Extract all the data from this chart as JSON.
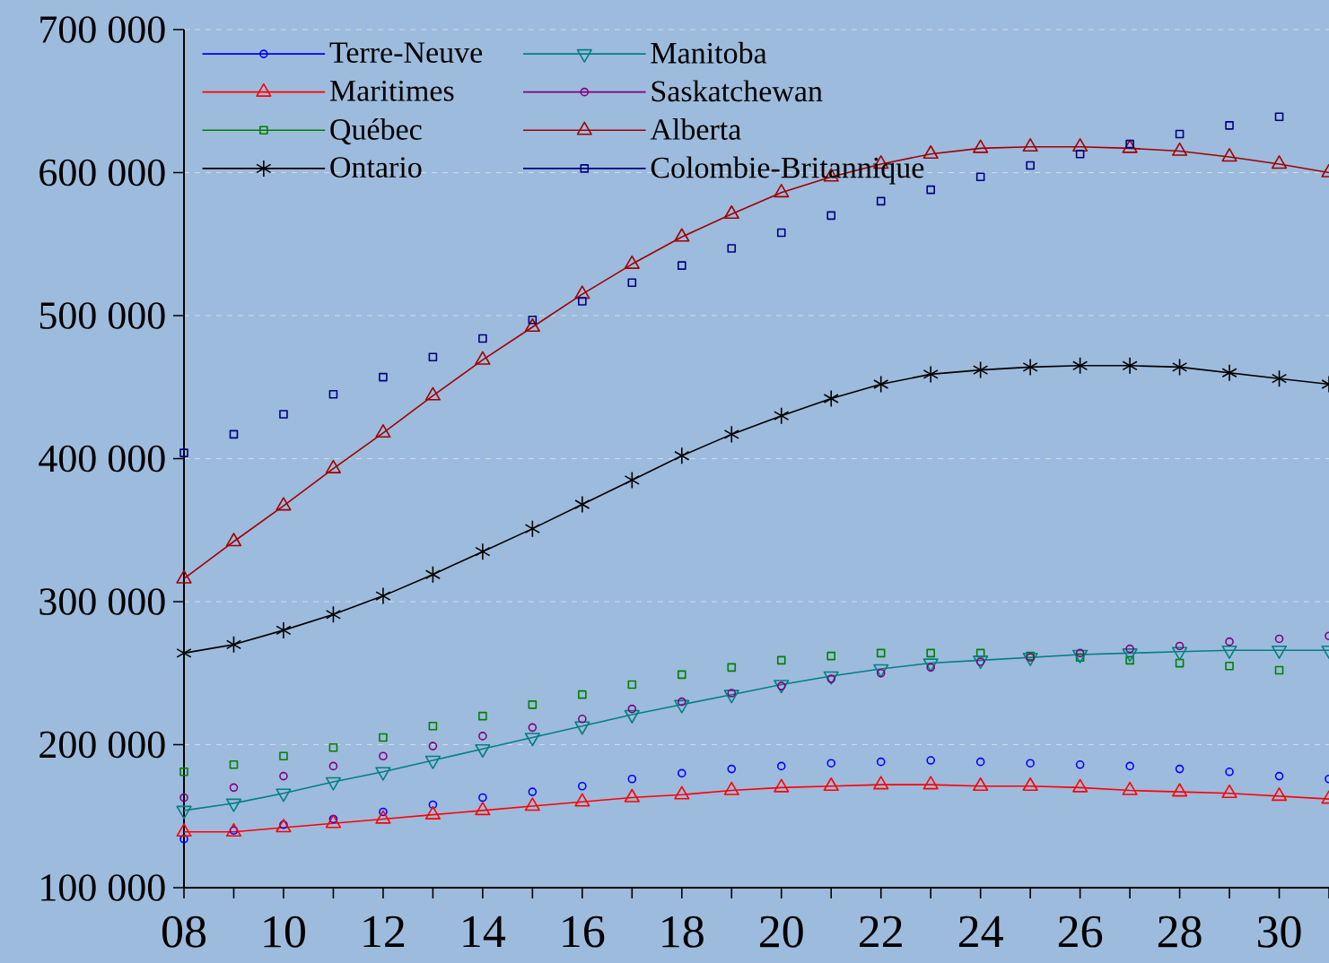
{
  "chart_data": {
    "type": "line",
    "x": [
      8,
      9,
      10,
      11,
      12,
      13,
      14,
      15,
      16,
      17,
      18,
      19,
      20,
      21,
      22,
      23,
      24,
      25,
      26,
      27,
      28,
      29,
      30,
      31
    ],
    "xlim": [
      8,
      31
    ],
    "xticks": [
      {
        "value": 8,
        "label": "08"
      },
      {
        "value": 9,
        "label": null
      },
      10,
      {
        "value": 11,
        "label": null
      },
      12,
      {
        "value": 13,
        "label": null
      },
      14,
      {
        "value": 15,
        "label": null
      },
      16,
      {
        "value": 17,
        "label": null
      },
      18,
      {
        "value": 19,
        "label": null
      },
      20,
      {
        "value": 21,
        "label": null
      },
      22,
      {
        "value": 23,
        "label": null
      },
      24,
      {
        "value": 25,
        "label": null
      },
      26,
      {
        "value": 27,
        "label": null
      },
      28,
      {
        "value": 29,
        "label": null
      },
      30,
      {
        "value": 31,
        "label": null
      }
    ],
    "ylim": [
      100000,
      700000
    ],
    "yticks": [
      {
        "value": 100000,
        "label": "100 000"
      },
      {
        "value": 200000,
        "label": "200 000"
      },
      {
        "value": 300000,
        "label": "300 000"
      },
      {
        "value": 400000,
        "label": "400 000"
      },
      {
        "value": 500000,
        "label": "500 000"
      },
      {
        "value": 600000,
        "label": "600 000"
      },
      {
        "value": 700000,
        "label": "700 000"
      }
    ],
    "grid": "y",
    "legend": "top left",
    "series": [
      {
        "name": "Terre-Neuve",
        "type": "scatter",
        "marker": "circle",
        "color": "#0000ff",
        "values": [
          134000,
          140000,
          144000,
          148000,
          153000,
          158000,
          163000,
          167000,
          171000,
          176000,
          180000,
          183000,
          185000,
          187000,
          188000,
          189000,
          188000,
          187000,
          186000,
          185000,
          183000,
          181000,
          178000,
          176000
        ]
      },
      {
        "name": "Maritimes",
        "type": "line",
        "marker": "triangle",
        "color": "#ff0000",
        "values": [
          139000,
          139000,
          142000,
          145000,
          148000,
          151000,
          154000,
          157000,
          160000,
          163000,
          165000,
          168000,
          170000,
          171000,
          172000,
          172000,
          171000,
          171000,
          170000,
          168000,
          167000,
          166000,
          164000,
          162000
        ]
      },
      {
        "name": "Québec",
        "type": "scatter",
        "marker": "square",
        "color": "#008000",
        "values": [
          181000,
          186000,
          192000,
          198000,
          205000,
          213000,
          220000,
          228000,
          235000,
          242000,
          249000,
          254000,
          259000,
          262000,
          264000,
          264000,
          264000,
          262000,
          261000,
          259000,
          257000,
          255000,
          252000,
          null
        ]
      },
      {
        "name": "Ontario",
        "type": "line",
        "marker": "cross",
        "color": "#000000",
        "values": [
          264000,
          270000,
          280000,
          291000,
          304000,
          319000,
          335000,
          351000,
          368000,
          385000,
          402000,
          417000,
          430000,
          442000,
          452000,
          459000,
          462000,
          464000,
          465000,
          465000,
          464000,
          460000,
          456000,
          452000
        ]
      },
      {
        "name": "Manitoba",
        "type": "line",
        "marker": "triangle-down",
        "color": "#008080",
        "values": [
          154000,
          159000,
          166000,
          174000,
          181000,
          189000,
          197000,
          205000,
          213000,
          221000,
          228000,
          235000,
          242000,
          248000,
          253000,
          257000,
          259000,
          261000,
          263000,
          264000,
          265000,
          266000,
          266000,
          266000
        ]
      },
      {
        "name": "Saskatchewan",
        "type": "scatter",
        "marker": "circle",
        "color": "#800080",
        "values": [
          163000,
          170000,
          178000,
          185000,
          192000,
          199000,
          206000,
          212000,
          218000,
          225000,
          230000,
          236000,
          241000,
          246000,
          250000,
          254000,
          258000,
          261000,
          264000,
          267000,
          269000,
          272000,
          274000,
          276000
        ]
      },
      {
        "name": "Alberta",
        "type": "line",
        "marker": "triangle",
        "color": "#a00000",
        "values": [
          316000,
          342000,
          367000,
          393000,
          418000,
          444000,
          469000,
          492000,
          515000,
          536000,
          555000,
          571000,
          586000,
          597000,
          606000,
          613000,
          617000,
          618000,
          618000,
          617000,
          615000,
          611000,
          606000,
          600000
        ]
      },
      {
        "name": "Colombie-Britannique",
        "type": "scatter",
        "marker": "square",
        "color": "#000080",
        "values": [
          404000,
          417000,
          431000,
          445000,
          457000,
          471000,
          484000,
          497000,
          510000,
          523000,
          535000,
          547000,
          558000,
          570000,
          580000,
          588000,
          597000,
          605000,
          613000,
          620000,
          627000,
          633000,
          639000,
          null
        ]
      }
    ]
  }
}
